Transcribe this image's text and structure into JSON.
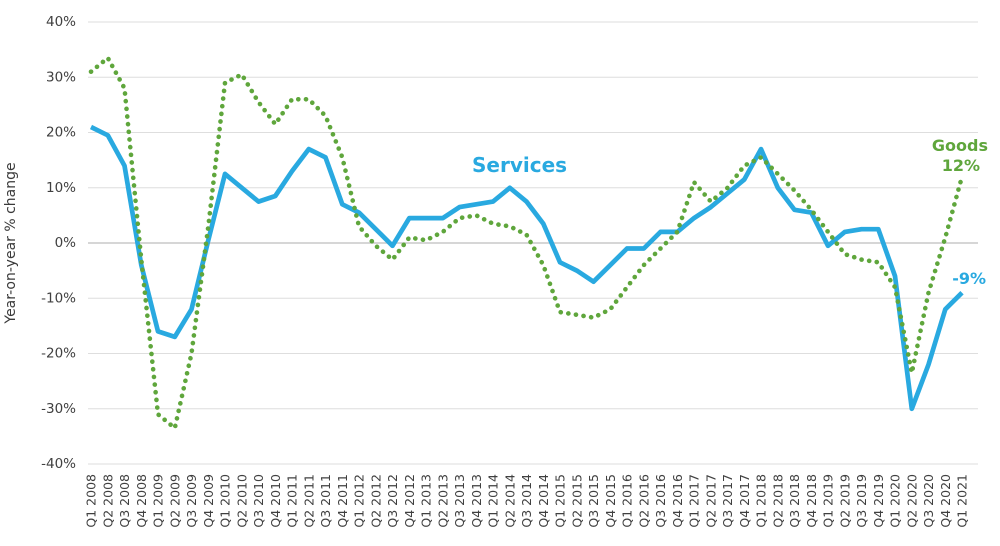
{
  "axes": {
    "y_title": "Year-on-year % change"
  },
  "annotations": {
    "services_label": "Services",
    "services_value": "-9%",
    "goods_label": "Goods",
    "goods_value": "12%"
  },
  "colors": {
    "services": "#29a9e0",
    "goods": "#5fa63c",
    "grid": "#dedede",
    "zero_line": "#c9c9c9",
    "tick_text": "#404040"
  },
  "chart_data": {
    "type": "line",
    "title": "",
    "xlabel": "",
    "ylabel": "Year-on-year % change",
    "ylim": [
      -40,
      40
    ],
    "ytick_step": 10,
    "ytick_labels": [
      "40%",
      "30%",
      "20%",
      "10%",
      "0%",
      "-10%",
      "-20%",
      "-30%",
      "-40%"
    ],
    "grid": "horizontal",
    "legend_position": "inline-annotations",
    "categories": [
      "Q1 2008",
      "Q2 2008",
      "Q3 2008",
      "Q4 2008",
      "Q1 2009",
      "Q2 2009",
      "Q3 2009",
      "Q4 2009",
      "Q1 2010",
      "Q2 2010",
      "Q3 2010",
      "Q4 2010",
      "Q1 2011",
      "Q2 2011",
      "Q3 2011",
      "Q4 2011",
      "Q1 2012",
      "Q2 2012",
      "Q3 2012",
      "Q4 2012",
      "Q1 2013",
      "Q2 2013",
      "Q3 2013",
      "Q4 2013",
      "Q1 2014",
      "Q2 2014",
      "Q3 2014",
      "Q4 2014",
      "Q1 2015",
      "Q2 2015",
      "Q3 2015",
      "Q4 2015",
      "Q1 2016",
      "Q2 2016",
      "Q3 2016",
      "Q4 2016",
      "Q1 2017",
      "Q2 2017",
      "Q3 2017",
      "Q4 2017",
      "Q1 2018",
      "Q2 2018",
      "Q3 2018",
      "Q4 2018",
      "Q1 2019",
      "Q2 2019",
      "Q3 2019",
      "Q4 2019",
      "Q1 2020",
      "Q2 2020",
      "Q3 2020",
      "Q4 2020",
      "Q1 2021"
    ],
    "series": [
      {
        "name": "Services",
        "style": "solid",
        "color": "#29a9e0",
        "values": [
          21,
          19.5,
          14,
          -4,
          -16,
          -17,
          -12,
          0.5,
          12.5,
          10,
          7.5,
          8.5,
          13,
          17,
          15.5,
          7,
          5.5,
          2.5,
          -0.5,
          4.5,
          4.5,
          4.5,
          6.5,
          7,
          7.5,
          10,
          7.5,
          3.5,
          -3.5,
          -5,
          -7,
          -4,
          -1,
          -1,
          2,
          2,
          4.5,
          6.5,
          9,
          11.5,
          17,
          10,
          6,
          5.5,
          -0.5,
          2,
          2.5,
          2.5,
          -6,
          -30,
          -22,
          -12,
          -9
        ]
      },
      {
        "name": "Goods",
        "style": "dotted",
        "color": "#5fa63c",
        "values": [
          31,
          33.5,
          28,
          -3,
          -31,
          -33.5,
          -20,
          3,
          29,
          30.5,
          25.5,
          21.5,
          26,
          26,
          23,
          15.5,
          3,
          -0.5,
          -3,
          1,
          0.5,
          2,
          4.5,
          5,
          3.5,
          3,
          1.5,
          -4,
          -12.5,
          -13,
          -13.5,
          -12,
          -8,
          -4,
          -1,
          2,
          11,
          7.5,
          10,
          14,
          15.5,
          12.5,
          9.5,
          6,
          2,
          -2,
          -3,
          -3.5,
          -8,
          -23.5,
          -9,
          1,
          12
        ]
      }
    ]
  }
}
